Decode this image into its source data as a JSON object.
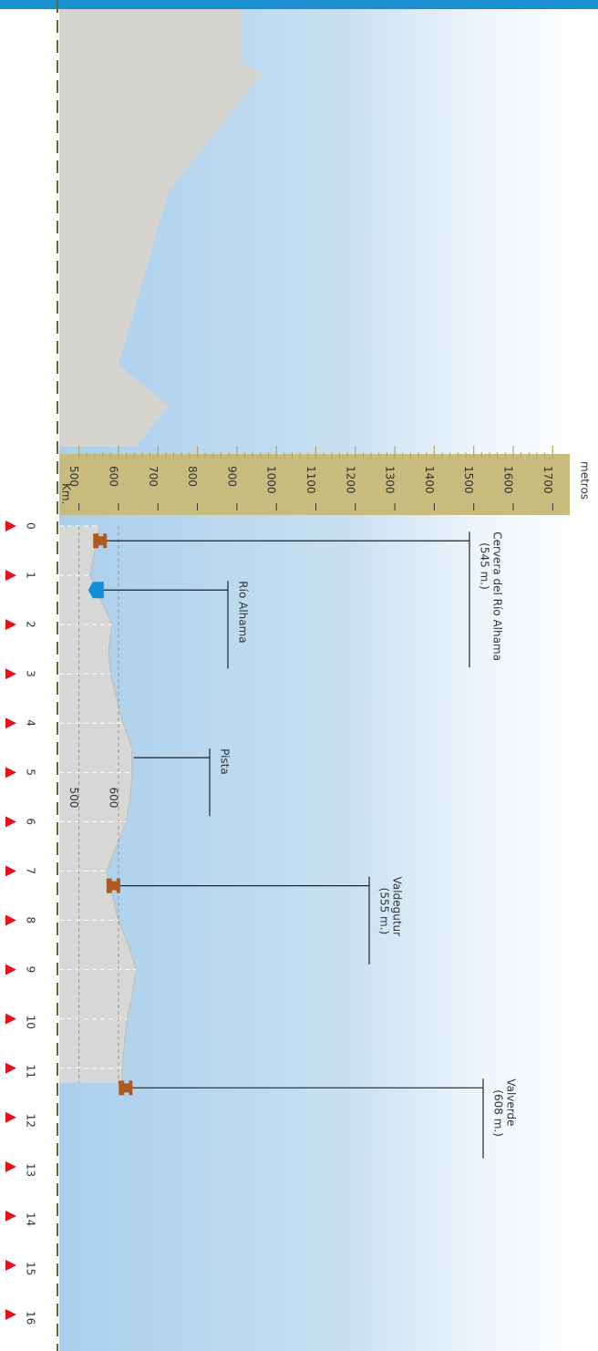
{
  "chart_data": {
    "type": "area",
    "x_label": "Km.",
    "y_label": "metros",
    "x": [
      0,
      0.5,
      1,
      1.5,
      2,
      2.5,
      3,
      3.5,
      4,
      4.5,
      5,
      5.5,
      6,
      6.5,
      7,
      7.5,
      8,
      8.5,
      9,
      9.5,
      10,
      10.5,
      11,
      11.3
    ],
    "values": [
      553,
      540,
      528,
      555,
      584,
      575,
      580,
      595,
      612,
      634,
      635,
      630,
      620,
      595,
      570,
      585,
      600,
      625,
      645,
      635,
      622,
      615,
      610,
      610
    ],
    "color": "#d9d8d4",
    "xlim": [
      0,
      16
    ],
    "xticks": [
      0,
      1,
      2,
      3,
      4,
      5,
      6,
      7,
      8,
      9,
      10,
      11,
      12,
      13,
      14,
      15,
      16
    ],
    "ylim": [
      450,
      1730
    ],
    "yticks": [
      500,
      600,
      700,
      800,
      900,
      1000,
      1100,
      1200,
      1300,
      1400,
      1500,
      1600,
      1700
    ],
    "reference_lines": [
      500,
      600
    ],
    "grid": true,
    "annotations": [
      {
        "km": 0.3,
        "lines": [
          "Cervera del Río Alhama",
          "(545 m.)"
        ]
      },
      {
        "km": 1.3,
        "lines": [
          "Río Alhama"
        ]
      },
      {
        "km": 4.7,
        "lines": [
          "Pista"
        ]
      },
      {
        "km": 7.3,
        "lines": [
          "Valdegutur",
          "(555 m.)"
        ]
      },
      {
        "km": 11.4,
        "lines": [
          "Valverde",
          "(608 m.)"
        ]
      }
    ]
  }
}
